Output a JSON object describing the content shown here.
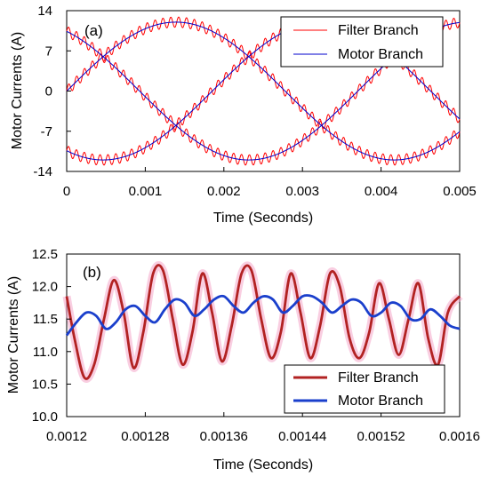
{
  "chart_data": [
    {
      "type": "line",
      "panel_label": "(a)",
      "xlabel": "Time (Seconds)",
      "ylabel": "Motor Currents (A)",
      "xlim": [
        0,
        0.005
      ],
      "ylim": [
        -14,
        14
      ],
      "x_ticks": [
        "0",
        "0.001",
        "0.002",
        "0.003",
        "0.004",
        "0.005"
      ],
      "y_ticks": [
        "14",
        "7",
        "0",
        "-7",
        "-14"
      ],
      "grid": false,
      "legend": "top-right",
      "waveform": {
        "amplitude": 12,
        "frequency_hz": 180,
        "phases_deg": [
          0,
          -120,
          120
        ],
        "filter_ripple_amplitude": 0.9,
        "filter_ripple_frequency_hz": 10000
      },
      "series": [
        {
          "name": "Filter Branch",
          "color": "#ff0000"
        },
        {
          "name": "Motor Branch",
          "color": "#0000cc"
        }
      ]
    },
    {
      "type": "line",
      "panel_label": "(b)",
      "xlabel": "Time (Seconds)",
      "ylabel": "Motor Currents (A)",
      "xlim": [
        0.0012,
        0.0016
      ],
      "ylim": [
        10.0,
        12.5
      ],
      "x_ticks": [
        "0.0012",
        "0.00128",
        "0.00136",
        "0.00144",
        "0.00152",
        "0.0016"
      ],
      "y_ticks": [
        "12.5",
        "12.0",
        "11.5",
        "11.0",
        "10.5",
        "10.0"
      ],
      "grid": false,
      "legend": "bottom-right",
      "series": [
        {
          "name": "Filter Branch",
          "color": "#b22222",
          "x": [
            0.0012,
            0.001208,
            0.001218,
            0.001228,
            0.001238,
            0.001248,
            0.001258,
            0.001268,
            0.001278,
            0.001288,
            0.001298,
            0.001308,
            0.001318,
            0.001328,
            0.001338,
            0.001348,
            0.001358,
            0.001368,
            0.001378,
            0.001388,
            0.001398,
            0.001408,
            0.001418,
            0.001428,
            0.001438,
            0.001448,
            0.001458,
            0.001468,
            0.001478,
            0.001488,
            0.001498,
            0.001508,
            0.001518,
            0.001528,
            0.001538,
            0.001548,
            0.001558,
            0.001568,
            0.001578,
            0.001588,
            0.0016
          ],
          "y": [
            11.85,
            11.2,
            10.6,
            10.8,
            11.5,
            12.1,
            11.6,
            10.75,
            11.3,
            12.2,
            12.25,
            11.5,
            10.8,
            11.3,
            12.2,
            11.6,
            10.85,
            11.4,
            12.2,
            12.25,
            11.5,
            10.9,
            11.3,
            12.2,
            11.6,
            10.9,
            11.4,
            12.2,
            12.0,
            11.2,
            10.9,
            11.3,
            12.05,
            11.5,
            10.95,
            11.5,
            12.05,
            11.2,
            10.8,
            11.6,
            11.85
          ]
        },
        {
          "name": "Motor Branch",
          "color": "#1a3fcc",
          "x": [
            0.0012,
            0.00121,
            0.00122,
            0.00123,
            0.00124,
            0.00125,
            0.00126,
            0.00127,
            0.00128,
            0.00129,
            0.0013,
            0.00131,
            0.00132,
            0.00133,
            0.00134,
            0.00135,
            0.00136,
            0.00137,
            0.00138,
            0.00139,
            0.0014,
            0.00141,
            0.00142,
            0.00143,
            0.00144,
            0.00145,
            0.00146,
            0.00147,
            0.00148,
            0.00149,
            0.0015,
            0.00151,
            0.00152,
            0.00153,
            0.00154,
            0.00155,
            0.00156,
            0.00157,
            0.00158,
            0.00159,
            0.0016
          ],
          "y": [
            11.25,
            11.45,
            11.6,
            11.55,
            11.35,
            11.45,
            11.65,
            11.7,
            11.55,
            11.45,
            11.65,
            11.8,
            11.75,
            11.55,
            11.65,
            11.8,
            11.85,
            11.7,
            11.6,
            11.75,
            11.85,
            11.8,
            11.6,
            11.7,
            11.85,
            11.85,
            11.75,
            11.6,
            11.7,
            11.8,
            11.75,
            11.55,
            11.6,
            11.75,
            11.7,
            11.5,
            11.5,
            11.65,
            11.55,
            11.4,
            11.35
          ]
        }
      ]
    }
  ]
}
